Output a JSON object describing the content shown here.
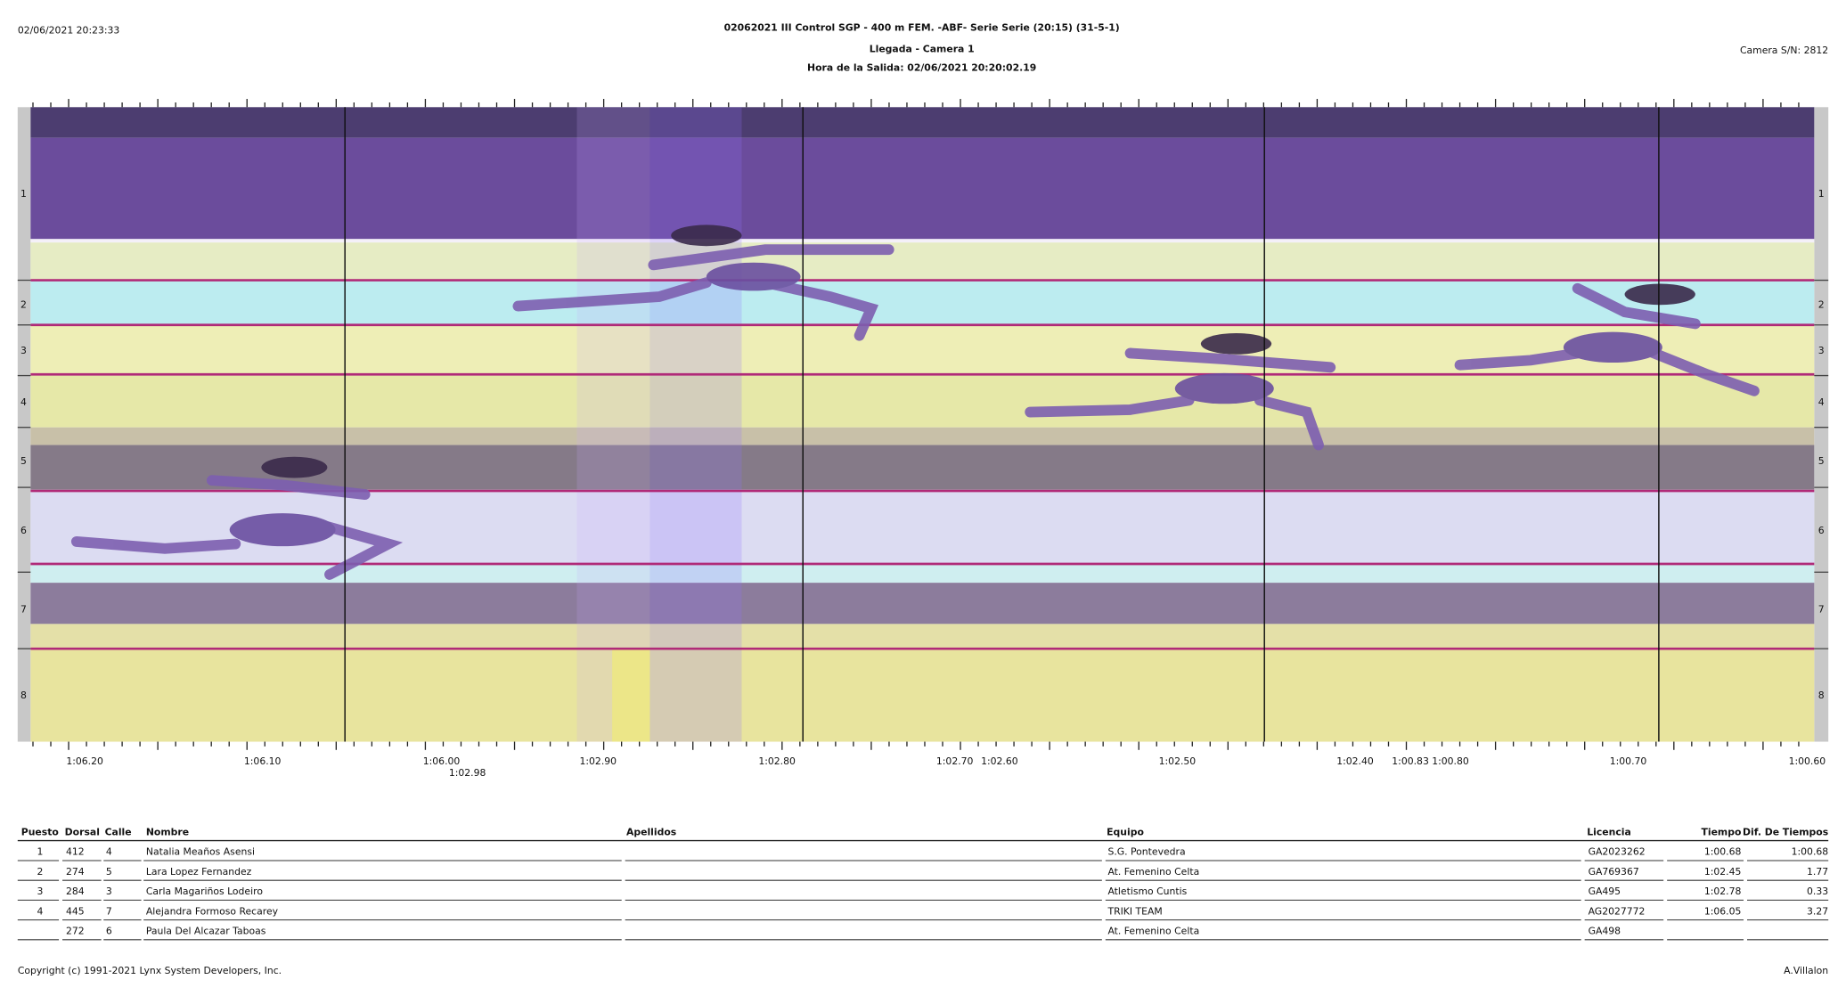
{
  "header": {
    "timestamp": "02/06/2021 20:23:33",
    "title": "02062021 III Control SGP - 400 m FEM. -ABF- Serie Serie (20:15) (31-5-1)",
    "subtitle": "Llegada - Camera 1",
    "start_time": "Hora de la Salida: 02/06/2021 20:20:02.19",
    "camera": "Camera S/N: 2812"
  },
  "photo": {
    "lanes": [
      "1",
      "2",
      "3",
      "4",
      "5",
      "6",
      "7",
      "8"
    ],
    "time_labels": [
      "1:06.20",
      "1:06.10",
      "1:06.00",
      "1:02.98",
      "1:02.90",
      "1:02.80",
      "1:02.70",
      "1:02.60",
      "1:02.50",
      "1:02.40",
      "1:00.83",
      "1:00.80",
      "1:00.70",
      "1:00.60"
    ]
  },
  "table": {
    "columns": [
      "Puesto",
      "Dorsal",
      "Calle",
      "Nombre",
      "Apellidos",
      "Equipo",
      "Licencia",
      "Tiempo",
      "Dif. De Tiempos"
    ],
    "rows": [
      {
        "puesto": "1",
        "dorsal": "412",
        "calle": "4",
        "nombre": "Natalia Meaños Asensi",
        "equipo": "S.G. Pontevedra",
        "licencia": "GA2023262",
        "tiempo": "1:00.68",
        "dif": "1:00.68"
      },
      {
        "puesto": "2",
        "dorsal": "274",
        "calle": "5",
        "nombre": "Lara Lopez Fernandez",
        "equipo": "At. Femenino Celta",
        "licencia": "GA769367",
        "tiempo": "1:02.45",
        "dif": "1.77"
      },
      {
        "puesto": "3",
        "dorsal": "284",
        "calle": "3",
        "nombre": "Carla Magariños Lodeiro",
        "equipo": "Atletismo Cuntis",
        "licencia": "GA495",
        "tiempo": "1:02.78",
        "dif": "0.33"
      },
      {
        "puesto": "4",
        "dorsal": "445",
        "calle": "7",
        "nombre": "Alejandra Formoso Recarey",
        "equipo": "TRIKI TEAM",
        "licencia": "AG2027772",
        "tiempo": "1:06.05",
        "dif": "3.27"
      },
      {
        "dorsal": "272",
        "calle": "6",
        "nombre": "Paula Del Alcazar Taboas",
        "equipo": "At. Femenino Celta",
        "licencia": "GA498"
      }
    ]
  },
  "footer": {
    "copyright": "Copyright (c) 1991-2021 Lynx System Developers, Inc.",
    "operator": "A.Villalon"
  }
}
